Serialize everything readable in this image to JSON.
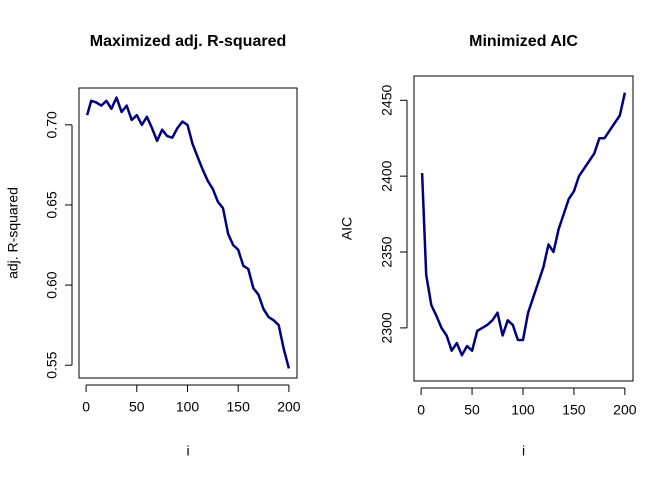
{
  "chart_data": [
    {
      "type": "line",
      "title": "Maximized adj. R-squared",
      "xlabel": "i",
      "ylabel": "adj. R-squared",
      "x": [
        1,
        5,
        10,
        15,
        20,
        25,
        30,
        35,
        40,
        45,
        50,
        55,
        60,
        65,
        70,
        75,
        80,
        85,
        90,
        95,
        100,
        105,
        110,
        115,
        120,
        125,
        130,
        135,
        140,
        145,
        150,
        155,
        160,
        165,
        170,
        175,
        180,
        185,
        190,
        195,
        200
      ],
      "series": [
        {
          "color": "#00007f",
          "values": [
            0.706,
            0.715,
            0.714,
            0.712,
            0.715,
            0.71,
            0.717,
            0.708,
            0.712,
            0.703,
            0.706,
            0.7,
            0.705,
            0.698,
            0.69,
            0.697,
            0.693,
            0.692,
            0.698,
            0.702,
            0.7,
            0.688,
            0.68,
            0.672,
            0.665,
            0.66,
            0.652,
            0.648,
            0.632,
            0.625,
            0.622,
            0.612,
            0.61,
            0.598,
            0.594,
            0.585,
            0.58,
            0.578,
            0.575,
            0.56,
            0.548
          ]
        }
      ],
      "xlim": [
        -7,
        208
      ],
      "ylim": [
        0.542,
        0.723
      ],
      "xticks": [
        0,
        50,
        100,
        150,
        200
      ],
      "yticks": [
        0.55,
        {
          "value": 0.6,
          "label": "0.60"
        },
        0.65,
        {
          "value": 0.7,
          "label": "0.70"
        }
      ]
    },
    {
      "type": "line",
      "title": "Minimized AIC",
      "xlabel": "i",
      "ylabel": "AIC",
      "x": [
        1,
        5,
        10,
        15,
        20,
        25,
        30,
        35,
        40,
        45,
        50,
        55,
        60,
        65,
        70,
        75,
        80,
        85,
        90,
        95,
        100,
        105,
        110,
        115,
        120,
        125,
        130,
        135,
        140,
        145,
        150,
        155,
        160,
        165,
        170,
        175,
        180,
        185,
        190,
        195,
        200
      ],
      "series": [
        {
          "color": "#00007f",
          "values": [
            2402,
            2335,
            2315,
            2308,
            2300,
            2295,
            2285,
            2290,
            2282,
            2288,
            2285,
            2298,
            2300,
            2302,
            2305,
            2310,
            2295,
            2305,
            2302,
            2292,
            2292,
            2310,
            2320,
            2330,
            2340,
            2355,
            2350,
            2365,
            2375,
            2385,
            2390,
            2400,
            2405,
            2410,
            2415,
            2425,
            2425,
            2430,
            2435,
            2440,
            2455
          ]
        }
      ],
      "xlim": [
        -7,
        208
      ],
      "ylim": [
        2265,
        2466
      ],
      "xticks": [
        0,
        50,
        100,
        150,
        200
      ],
      "yticks": [
        2300,
        2350,
        2400,
        2450
      ]
    }
  ]
}
